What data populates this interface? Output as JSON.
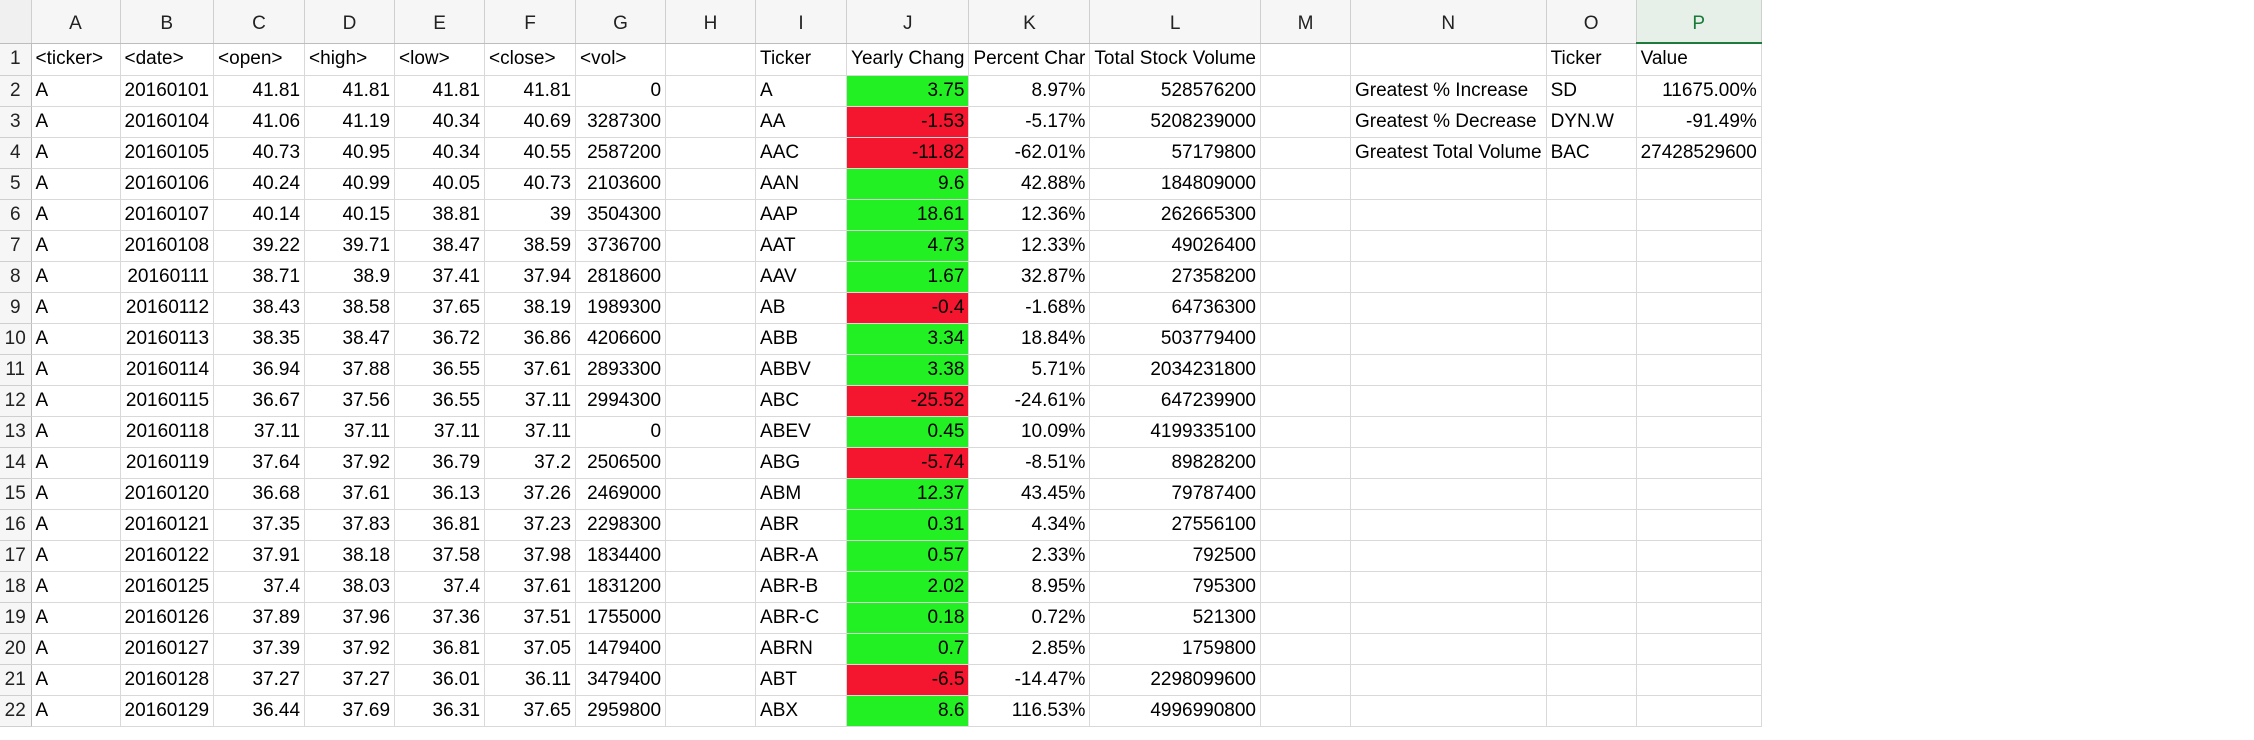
{
  "columns": [
    "A",
    "B",
    "C",
    "D",
    "E",
    "F",
    "G",
    "H",
    "I",
    "J",
    "K",
    "L",
    "M",
    "N",
    "O",
    "P"
  ],
  "header_row": [
    "<ticker>",
    "<date>",
    "<open>",
    "<high>",
    "<low>",
    "<close>",
    "<vol>",
    "",
    "Ticker",
    "Yearly Chang",
    "Percent Char",
    "Total Stock Volume",
    "",
    "",
    "Ticker",
    "Value"
  ],
  "stock_rows": [
    [
      "A",
      "20160101",
      "41.81",
      "41.81",
      "41.81",
      "41.81",
      "0"
    ],
    [
      "A",
      "20160104",
      "41.06",
      "41.19",
      "40.34",
      "40.69",
      "3287300"
    ],
    [
      "A",
      "20160105",
      "40.73",
      "40.95",
      "40.34",
      "40.55",
      "2587200"
    ],
    [
      "A",
      "20160106",
      "40.24",
      "40.99",
      "40.05",
      "40.73",
      "2103600"
    ],
    [
      "A",
      "20160107",
      "40.14",
      "40.15",
      "38.81",
      "39",
      "3504300"
    ],
    [
      "A",
      "20160108",
      "39.22",
      "39.71",
      "38.47",
      "38.59",
      "3736700"
    ],
    [
      "A",
      "20160111",
      "38.71",
      "38.9",
      "37.41",
      "37.94",
      "2818600"
    ],
    [
      "A",
      "20160112",
      "38.43",
      "38.58",
      "37.65",
      "38.19",
      "1989300"
    ],
    [
      "A",
      "20160113",
      "38.35",
      "38.47",
      "36.72",
      "36.86",
      "4206600"
    ],
    [
      "A",
      "20160114",
      "36.94",
      "37.88",
      "36.55",
      "37.61",
      "2893300"
    ],
    [
      "A",
      "20160115",
      "36.67",
      "37.56",
      "36.55",
      "37.11",
      "2994300"
    ],
    [
      "A",
      "20160118",
      "37.11",
      "37.11",
      "37.11",
      "37.11",
      "0"
    ],
    [
      "A",
      "20160119",
      "37.64",
      "37.92",
      "36.79",
      "37.2",
      "2506500"
    ],
    [
      "A",
      "20160120",
      "36.68",
      "37.61",
      "36.13",
      "37.26",
      "2469000"
    ],
    [
      "A",
      "20160121",
      "37.35",
      "37.83",
      "36.81",
      "37.23",
      "2298300"
    ],
    [
      "A",
      "20160122",
      "37.91",
      "38.18",
      "37.58",
      "37.98",
      "1834400"
    ],
    [
      "A",
      "20160125",
      "37.4",
      "38.03",
      "37.4",
      "37.61",
      "1831200"
    ],
    [
      "A",
      "20160126",
      "37.89",
      "37.96",
      "37.36",
      "37.51",
      "1755000"
    ],
    [
      "A",
      "20160127",
      "37.39",
      "37.92",
      "36.81",
      "37.05",
      "1479400"
    ],
    [
      "A",
      "20160128",
      "37.27",
      "37.27",
      "36.01",
      "36.11",
      "3479400"
    ],
    [
      "A",
      "20160129",
      "36.44",
      "37.69",
      "36.31",
      "37.65",
      "2959800"
    ]
  ],
  "summary_rows": [
    {
      "ticker": "A",
      "change": "3.75",
      "pct": "8.97%",
      "volume": "528576200",
      "status": "pos"
    },
    {
      "ticker": "AA",
      "change": "-1.53",
      "pct": "-5.17%",
      "volume": "5208239000",
      "status": "neg"
    },
    {
      "ticker": "AAC",
      "change": "-11.82",
      "pct": "-62.01%",
      "volume": "57179800",
      "status": "neg"
    },
    {
      "ticker": "AAN",
      "change": "9.6",
      "pct": "42.88%",
      "volume": "184809000",
      "status": "pos"
    },
    {
      "ticker": "AAP",
      "change": "18.61",
      "pct": "12.36%",
      "volume": "262665300",
      "status": "pos"
    },
    {
      "ticker": "AAT",
      "change": "4.73",
      "pct": "12.33%",
      "volume": "49026400",
      "status": "pos"
    },
    {
      "ticker": "AAV",
      "change": "1.67",
      "pct": "32.87%",
      "volume": "27358200",
      "status": "pos"
    },
    {
      "ticker": "AB",
      "change": "-0.4",
      "pct": "-1.68%",
      "volume": "64736300",
      "status": "neg"
    },
    {
      "ticker": "ABB",
      "change": "3.34",
      "pct": "18.84%",
      "volume": "503779400",
      "status": "pos"
    },
    {
      "ticker": "ABBV",
      "change": "3.38",
      "pct": "5.71%",
      "volume": "2034231800",
      "status": "pos"
    },
    {
      "ticker": "ABC",
      "change": "-25.52",
      "pct": "-24.61%",
      "volume": "647239900",
      "status": "neg"
    },
    {
      "ticker": "ABEV",
      "change": "0.45",
      "pct": "10.09%",
      "volume": "4199335100",
      "status": "pos"
    },
    {
      "ticker": "ABG",
      "change": "-5.74",
      "pct": "-8.51%",
      "volume": "89828200",
      "status": "neg"
    },
    {
      "ticker": "ABM",
      "change": "12.37",
      "pct": "43.45%",
      "volume": "79787400",
      "status": "pos"
    },
    {
      "ticker": "ABR",
      "change": "0.31",
      "pct": "4.34%",
      "volume": "27556100",
      "status": "pos"
    },
    {
      "ticker": "ABR-A",
      "change": "0.57",
      "pct": "2.33%",
      "volume": "792500",
      "status": "pos"
    },
    {
      "ticker": "ABR-B",
      "change": "2.02",
      "pct": "8.95%",
      "volume": "795300",
      "status": "pos"
    },
    {
      "ticker": "ABR-C",
      "change": "0.18",
      "pct": "0.72%",
      "volume": "521300",
      "status": "pos"
    },
    {
      "ticker": "ABRN",
      "change": "0.7",
      "pct": "2.85%",
      "volume": "1759800",
      "status": "pos"
    },
    {
      "ticker": "ABT",
      "change": "-6.5",
      "pct": "-14.47%",
      "volume": "2298099600",
      "status": "neg"
    },
    {
      "ticker": "ABX",
      "change": "8.6",
      "pct": "116.53%",
      "volume": "4996990800",
      "status": "pos"
    }
  ],
  "greatest": [
    {
      "label": "Greatest % Increase",
      "ticker": "SD",
      "value": "11675.00%"
    },
    {
      "label": "Greatest % Decrease",
      "ticker": "DYN.W",
      "value": "-91.49%"
    },
    {
      "label": "Greatest Total Volume",
      "ticker": "BAC",
      "value": "27428529600"
    }
  ],
  "colors": {
    "positive": "#22f022",
    "negative": "#f4152e",
    "selected_column": "#1e7b3c"
  },
  "selected_column": "P"
}
